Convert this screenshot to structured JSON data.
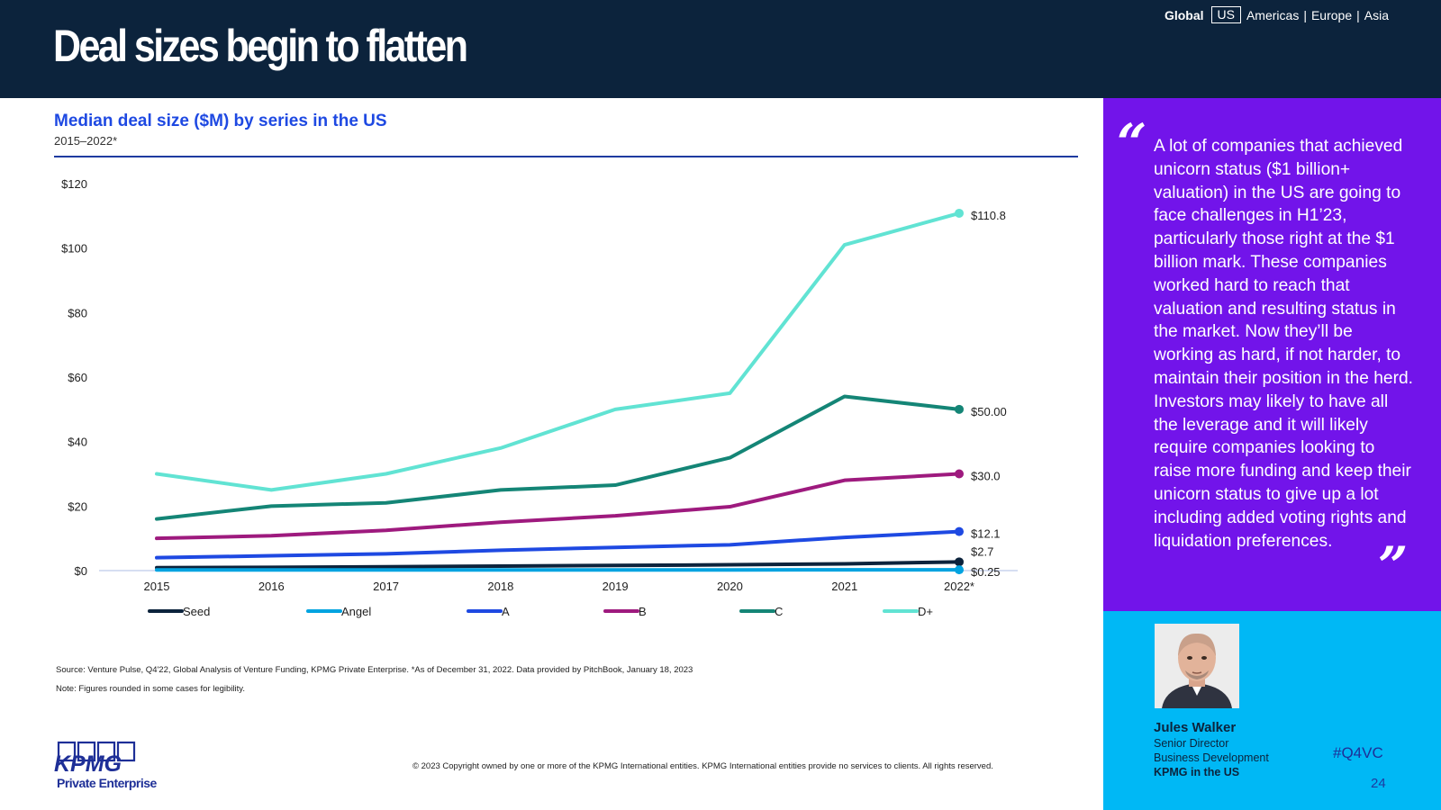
{
  "header": {
    "title": "Deal sizes begin to flatten",
    "nav": {
      "global": "Global",
      "us": "US",
      "americas": "Americas",
      "europe": "Europe",
      "asia": "Asia",
      "separator": "|"
    }
  },
  "chart_heading": {
    "title": "Median deal size ($M) by series in the US",
    "subtitle": "2015–2022*"
  },
  "chart_data": {
    "type": "line",
    "x": [
      "2015",
      "2016",
      "2017",
      "2018",
      "2019",
      "2020",
      "2021",
      "2022*"
    ],
    "ylim": [
      0,
      120
    ],
    "yticks": [
      "$0",
      "$20",
      "$40",
      "$60",
      "$80",
      "$100",
      "$120"
    ],
    "ytick_values": [
      0,
      20,
      40,
      60,
      80,
      100,
      120
    ],
    "grid": false,
    "legend_position": "bottom",
    "series": [
      {
        "name": "Seed",
        "color": "#0c233c",
        "values": [
          0.9,
          1.0,
          1.2,
          1.4,
          1.6,
          1.8,
          2.1,
          2.7
        ],
        "end_label": "$2.7"
      },
      {
        "name": "Angel",
        "color": "#00a3e0",
        "values": [
          0.2,
          0.2,
          0.2,
          0.2,
          0.2,
          0.2,
          0.25,
          0.25
        ],
        "end_label": "$0.25"
      },
      {
        "name": "A",
        "color": "#1e49e2",
        "values": [
          4.0,
          4.6,
          5.2,
          6.3,
          7.2,
          8.0,
          10.3,
          12.1
        ],
        "end_label": "$12.1"
      },
      {
        "name": "B",
        "color": "#9e1a7e",
        "values": [
          10.0,
          10.8,
          12.5,
          15.0,
          17.0,
          19.8,
          28.0,
          30.0
        ],
        "end_label": "$30.0"
      },
      {
        "name": "C",
        "color": "#148576",
        "values": [
          16.0,
          20.0,
          21.0,
          25.0,
          26.5,
          35.0,
          54.0,
          50.0
        ],
        "end_label": "$50.00"
      },
      {
        "name": "D+",
        "color": "#61e3d3",
        "values": [
          30.0,
          25.0,
          30.0,
          38.0,
          50.0,
          55.0,
          101.0,
          110.8
        ],
        "end_label": "$110.8"
      }
    ]
  },
  "notes": {
    "source": "Source: Venture Pulse, Q4'22, Global Analysis of Venture Funding, KPMG Private Enterprise. *As of December 31, 2022. Data provided by PitchBook, January 18, 2023",
    "rounding": "Note: Figures rounded in some cases for legibility.",
    "copyright": "© 2023 Copyright owned by one or more of the KPMG International entities. KPMG International entities provide no services to clients. All rights reserved."
  },
  "logo": {
    "wordmark": "KPMG",
    "subtitle": "Private Enterprise"
  },
  "quote": {
    "open_mark": "“",
    "close_mark": "”",
    "text": "A lot of companies that achieved unicorn status ($1 billion+ valuation) in the US are going to face challenges in H1’23, particularly those right at the $1 billion mark. These companies worked hard to reach that valuation and resulting status in the market. Now they’ll be working as hard, if not harder, to maintain their position in the herd. Investors may likely to have all the leverage and it will likely require companies looking to raise more funding and keep their unicorn status to give up a lot including added voting rights and liquidation preferences."
  },
  "person": {
    "name": "Jules Walker",
    "role": "Senior Director",
    "department": "Business Development",
    "organization": "KPMG in the US"
  },
  "footer": {
    "hashtag": "#Q4VC",
    "page_number": "24"
  },
  "colors": {
    "header_bg": "#0c233c",
    "quote_bg": "#7214ea",
    "person_bg": "#00b8f5",
    "accent_blue": "#1e49e2"
  }
}
